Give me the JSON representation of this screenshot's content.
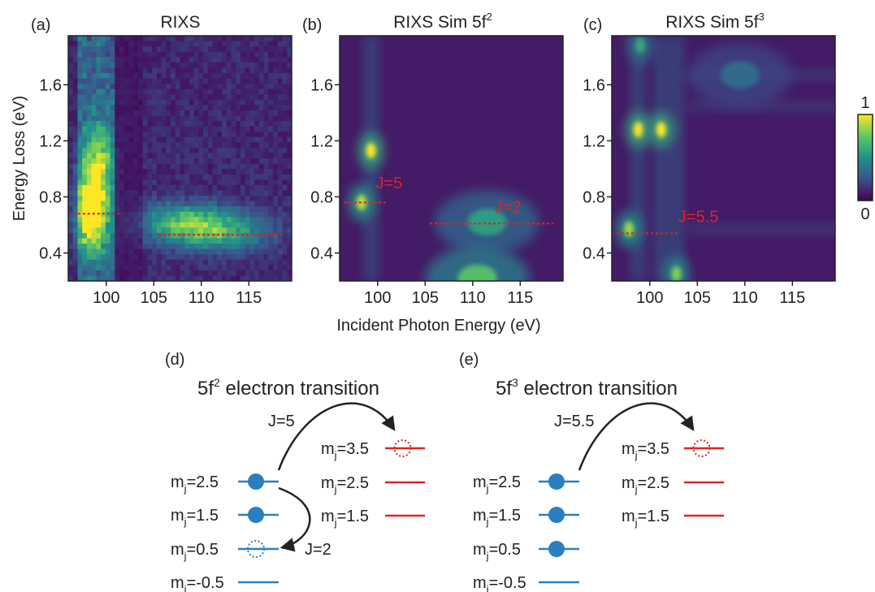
{
  "chart_data": [
    {
      "type": "heatmap",
      "panel_label": "(a)",
      "title": "RIXS",
      "xlim": [
        96,
        119.5
      ],
      "ylim": [
        0.2,
        1.95
      ],
      "xticks": [
        "100",
        "105",
        "110",
        "115"
      ],
      "yticks": [
        "0.4",
        "0.8",
        "1.2",
        "1.6"
      ],
      "peaks": [
        {
          "x": 98.5,
          "y": 0.68,
          "intensity": 1.0
        },
        {
          "x": 99.0,
          "y": 1.05,
          "intensity": 0.6
        },
        {
          "x": 110.0,
          "y": 0.58,
          "intensity": 0.45
        },
        {
          "x": 107.0,
          "y": 0.62,
          "intensity": 0.35
        },
        {
          "x": 113.5,
          "y": 0.55,
          "intensity": 0.3
        }
      ],
      "dashed_lines": [
        {
          "x": [
            96.5,
            101.5
          ],
          "y": 0.68
        },
        {
          "x": 105.5,
          "x_end": 118.5,
          "y": 0.53
        }
      ],
      "annotations": []
    },
    {
      "type": "heatmap",
      "panel_label": "(b)",
      "title": "RIXS Sim 5f",
      "title_sup": "2",
      "xlim": [
        96,
        119.5
      ],
      "ylim": [
        0.2,
        1.95
      ],
      "xticks": [
        "100",
        "105",
        "110",
        "115"
      ],
      "yticks": [
        "0.4",
        "0.8",
        "1.2",
        "1.6"
      ],
      "peaks": [
        {
          "x": 99.3,
          "y": 1.13,
          "intensity": 1.0
        },
        {
          "x": 98.3,
          "y": 0.76,
          "intensity": 0.9
        },
        {
          "x": 111.5,
          "y": 0.62,
          "intensity": 0.55
        },
        {
          "x": 110.5,
          "y": 0.22,
          "intensity": 0.7
        }
      ],
      "dashed_lines": [
        {
          "x": [
            96.5,
            101
          ],
          "y": 0.76
        },
        {
          "x": [
            105.5,
            118.5
          ],
          "y": 0.61
        }
      ],
      "annotations": [
        "J=5",
        "J=2"
      ]
    },
    {
      "type": "heatmap",
      "panel_label": "(c)",
      "title": "RIXS Sim 5f",
      "title_sup": "3",
      "xlim": [
        96,
        119.5
      ],
      "ylim": [
        0.2,
        1.95
      ],
      "xticks": [
        "100",
        "105",
        "110",
        "115"
      ],
      "yticks": [
        "0.4",
        "0.8",
        "1.2",
        "1.6"
      ],
      "peaks": [
        {
          "x": 98.8,
          "y": 1.28,
          "intensity": 1.0
        },
        {
          "x": 101.2,
          "y": 1.28,
          "intensity": 1.0
        },
        {
          "x": 97.8,
          "y": 0.57,
          "intensity": 0.85
        },
        {
          "x": 102.8,
          "y": 0.25,
          "intensity": 0.8
        },
        {
          "x": 109.5,
          "y": 1.67,
          "intensity": 0.35
        },
        {
          "x": 99.0,
          "y": 1.88,
          "intensity": 0.6
        }
      ],
      "dashed_lines": [
        {
          "x": [
            96.5,
            103
          ],
          "y": 0.54
        }
      ],
      "annotations": [
        "J=5.5"
      ]
    }
  ],
  "figure": {
    "y_axis_label": "Energy Loss (eV)",
    "x_axis_label": "Incident Photon Energy (eV)",
    "colorbar": {
      "max_label": "1",
      "min_label": "0"
    },
    "colors": {
      "blue": "#2a7fc0",
      "red": "#e02222",
      "viridis_low": "#440154",
      "viridis_high": "#fde725"
    }
  },
  "diagrams": [
    {
      "label": "(d)",
      "title_prefix": "5f",
      "title_sup": "2",
      "title_suffix": " electron transition",
      "left_levels": [
        {
          "m": "m",
          "sub": "j",
          "value": "=2.5",
          "state": "filled"
        },
        {
          "m": "m",
          "sub": "j",
          "value": "=1.5",
          "state": "filled"
        },
        {
          "m": "m",
          "sub": "j",
          "value": "=0.5",
          "state": "dotted"
        },
        {
          "m": "m",
          "sub": "j",
          "value": "=-0.5",
          "state": "empty"
        }
      ],
      "right_levels": [
        {
          "m": "m",
          "sub": "j",
          "value": "=3.5",
          "state": "dotted"
        },
        {
          "m": "m",
          "sub": "j",
          "value": "=2.5",
          "state": "empty"
        },
        {
          "m": "m",
          "sub": "j",
          "value": "=1.5",
          "state": "empty"
        }
      ],
      "transitions": [
        "J=5",
        "J=2"
      ]
    },
    {
      "label": "(e)",
      "title_prefix": "5f",
      "title_sup": "3",
      "title_suffix": " electron transition",
      "left_levels": [
        {
          "m": "m",
          "sub": "j",
          "value": "=2.5",
          "state": "filled"
        },
        {
          "m": "m",
          "sub": "j",
          "value": "=1.5",
          "state": "filled"
        },
        {
          "m": "m",
          "sub": "j",
          "value": "=0.5",
          "state": "filled"
        },
        {
          "m": "m",
          "sub": "j",
          "value": "=-0.5",
          "state": "empty"
        }
      ],
      "right_levels": [
        {
          "m": "m",
          "sub": "j",
          "value": "=3.5",
          "state": "dotted"
        },
        {
          "m": "m",
          "sub": "j",
          "value": "=2.5",
          "state": "empty"
        },
        {
          "m": "m",
          "sub": "j",
          "value": "=1.5",
          "state": "empty"
        }
      ],
      "transitions": [
        "J=5.5"
      ]
    }
  ]
}
